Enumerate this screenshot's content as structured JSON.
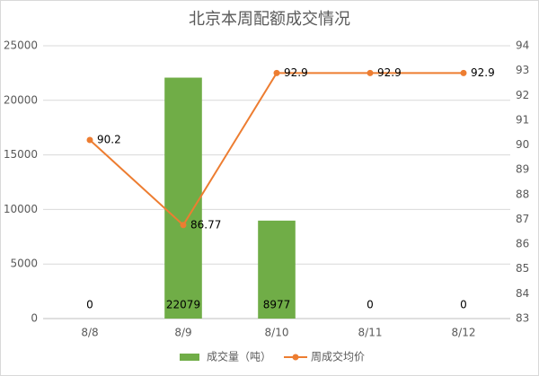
{
  "chart_data": {
    "type": "bar",
    "title": "北京本周配额成交情况",
    "categories": [
      "8/8",
      "8/9",
      "8/10",
      "8/11",
      "8/12"
    ],
    "series": [
      {
        "name": "成交量（吨）",
        "type": "bar",
        "color": "#70ad47",
        "values": [
          0,
          22079,
          8977,
          0,
          0
        ]
      },
      {
        "name": "周成交均价",
        "type": "line",
        "axis": "y2",
        "color": "#ed7d31",
        "values": [
          90.2,
          86.77,
          92.9,
          92.9,
          92.9
        ]
      }
    ],
    "ylim": [
      0,
      25000
    ],
    "yticks": [
      0,
      5000,
      10000,
      15000,
      20000,
      25000
    ],
    "y2lim": [
      83,
      94
    ],
    "y2ticks": [
      83,
      84,
      85,
      86,
      87,
      88,
      89,
      90,
      91,
      92,
      93,
      94
    ],
    "grid": true,
    "legend": "bottom"
  }
}
